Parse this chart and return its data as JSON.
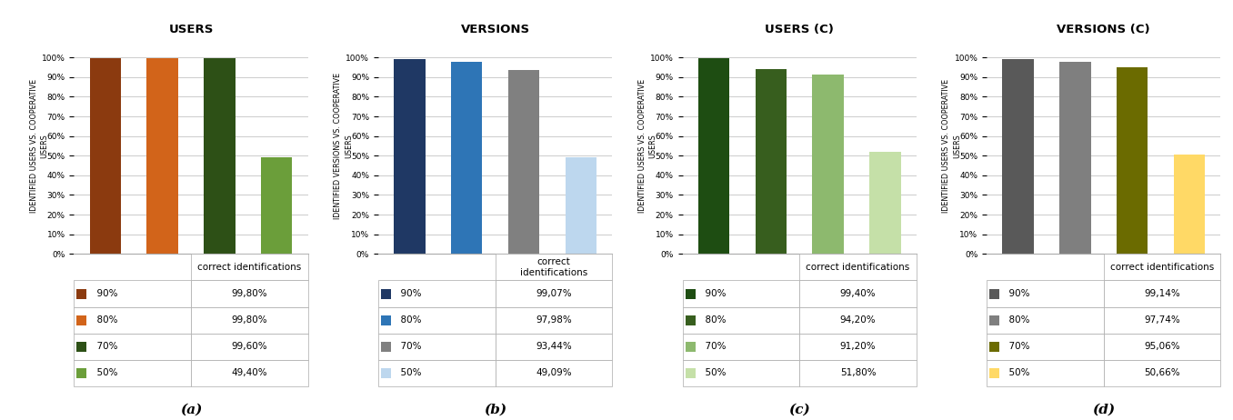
{
  "panels": [
    {
      "title": "USERS",
      "ylabel": "IDENTIFIED USERS VS. COOPERATIVE\nUSERS",
      "label": "(a)",
      "values": [
        99.8,
        99.8,
        99.6,
        49.4
      ],
      "colors": [
        "#8B3A0F",
        "#D2641A",
        "#2D5016",
        "#6B9E3A"
      ],
      "legend_labels": [
        "90%",
        "80%",
        "70%",
        "50%"
      ],
      "legend_values": [
        "99,80%",
        "99,80%",
        "99,60%",
        "49,40%"
      ],
      "col_header": "correct identifications"
    },
    {
      "title": "VERSIONS",
      "ylabel": "IDENTIFIED VERSIONS VS. COOPERATIVE\nUSERS",
      "label": "(b)",
      "values": [
        99.07,
        97.98,
        93.44,
        49.09
      ],
      "colors": [
        "#1F3864",
        "#2E75B6",
        "#808080",
        "#BDD7EE"
      ],
      "legend_labels": [
        "90%",
        "80%",
        "70%",
        "50%"
      ],
      "legend_values": [
        "99,07%",
        "97,98%",
        "93,44%",
        "49,09%"
      ],
      "col_header": "correct\nidentifications"
    },
    {
      "title": "USERS (C)",
      "ylabel": "IDENTIFIED USERS VS. COOPERATIVE\nUSERS",
      "label": "(c)",
      "values": [
        99.4,
        94.2,
        91.2,
        51.8
      ],
      "colors": [
        "#1E4D12",
        "#375E1E",
        "#8DB96E",
        "#C5E0A8"
      ],
      "legend_labels": [
        "90%",
        "80%",
        "70%",
        "50%"
      ],
      "legend_values": [
        "99,40%",
        "94,20%",
        "91,20%",
        "51,80%"
      ],
      "col_header": "correct identifications"
    },
    {
      "title": "VERSIONS (C)",
      "ylabel": "IDENTIFIED USERS VS. COOPERATIVE\nUSERS",
      "label": "(d)",
      "values": [
        99.14,
        97.74,
        95.06,
        50.66
      ],
      "colors": [
        "#595959",
        "#7F7F7F",
        "#6B6B00",
        "#FFD966"
      ],
      "legend_labels": [
        "90%",
        "80%",
        "70%",
        "50%"
      ],
      "legend_values": [
        "99,14%",
        "97,74%",
        "95,06%",
        "50,66%"
      ],
      "col_header": "correct identifications"
    }
  ],
  "yticks": [
    0,
    10,
    20,
    30,
    40,
    50,
    60,
    70,
    80,
    90,
    100
  ],
  "ytick_labels": [
    "0%",
    "10%",
    "20%",
    "30%",
    "40%",
    "50%",
    "60%",
    "70%",
    "80%",
    "90%",
    "100%"
  ],
  "background_color": "#ffffff",
  "grid_color": "#cccccc"
}
